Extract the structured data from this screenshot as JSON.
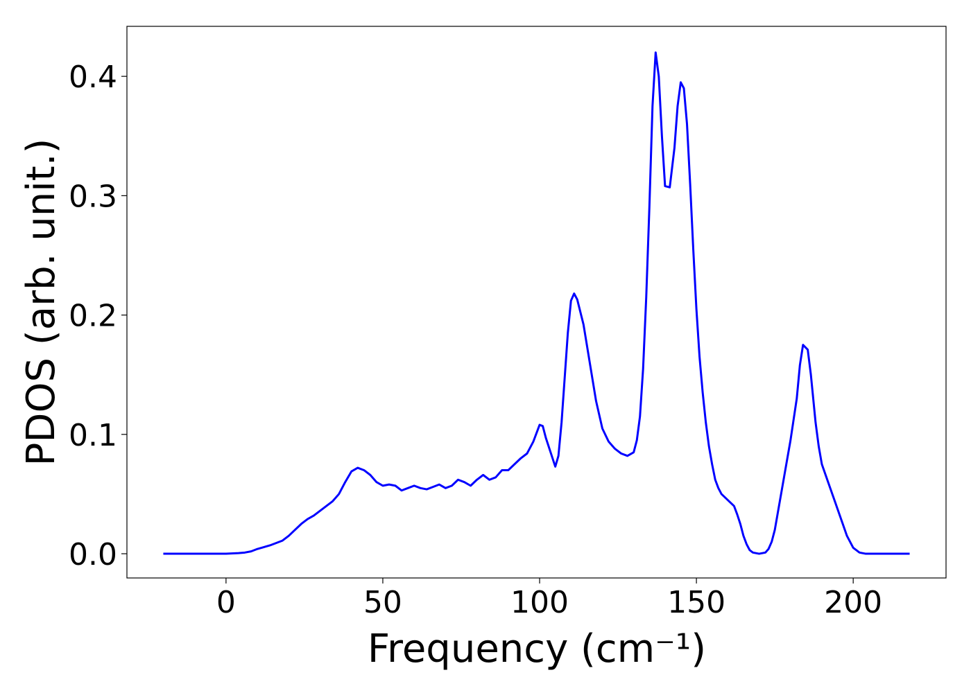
{
  "chart_data": {
    "type": "line",
    "xlabel": "Frequency (cm⁻¹)",
    "ylabel": "PDOS (arb. unit.)",
    "x": [
      -20,
      -10,
      0,
      4,
      6,
      8,
      10,
      14,
      18,
      20,
      22,
      24,
      26,
      28,
      30,
      32,
      34,
      36,
      38,
      40,
      42,
      44,
      46,
      48,
      50,
      52,
      54,
      56,
      58,
      60,
      62,
      64,
      66,
      68,
      70,
      72,
      74,
      76,
      78,
      80,
      82,
      84,
      86,
      88,
      90,
      92,
      94,
      96,
      98,
      100,
      101,
      102,
      104,
      105,
      106,
      107,
      109,
      110,
      111,
      112,
      114,
      116,
      118,
      120,
      122,
      124,
      126,
      128,
      130,
      131,
      132,
      133,
      134,
      135,
      136,
      137,
      138,
      139,
      140,
      141.5,
      143,
      144,
      145,
      146,
      147,
      148,
      149,
      150,
      151,
      152,
      153,
      154,
      155,
      156,
      157,
      158,
      160,
      162,
      163,
      164,
      165,
      166,
      167,
      168,
      170,
      172,
      173,
      174,
      175,
      176,
      178,
      180,
      182,
      183,
      184,
      185.5,
      186.5,
      188,
      189,
      190,
      192,
      194,
      196,
      198,
      200,
      202,
      204,
      210,
      218
    ],
    "series": [
      {
        "color": "#0000ff",
        "values": [
          0,
          0,
          0,
          0.0005,
          0.001,
          0.002,
          0.004,
          0.007,
          0.011,
          0.015,
          0.02,
          0.025,
          0.029,
          0.032,
          0.036,
          0.04,
          0.044,
          0.05,
          0.06,
          0.069,
          0.072,
          0.07,
          0.066,
          0.06,
          0.057,
          0.058,
          0.057,
          0.053,
          0.055,
          0.057,
          0.055,
          0.054,
          0.056,
          0.058,
          0.055,
          0.057,
          0.062,
          0.06,
          0.057,
          0.062,
          0.066,
          0.062,
          0.064,
          0.07,
          0.07,
          0.075,
          0.08,
          0.084,
          0.094,
          0.108,
          0.107,
          0.097,
          0.081,
          0.073,
          0.082,
          0.11,
          0.185,
          0.212,
          0.218,
          0.213,
          0.192,
          0.16,
          0.128,
          0.105,
          0.094,
          0.088,
          0.084,
          0.082,
          0.085,
          0.095,
          0.115,
          0.155,
          0.215,
          0.29,
          0.375,
          0.42,
          0.4,
          0.35,
          0.308,
          0.307,
          0.34,
          0.375,
          0.395,
          0.39,
          0.36,
          0.31,
          0.255,
          0.205,
          0.165,
          0.135,
          0.11,
          0.09,
          0.075,
          0.062,
          0.055,
          0.05,
          0.045,
          0.04,
          0.033,
          0.025,
          0.015,
          0.008,
          0.003,
          0.001,
          0,
          0.001,
          0.004,
          0.01,
          0.02,
          0.035,
          0.065,
          0.095,
          0.13,
          0.158,
          0.175,
          0.171,
          0.15,
          0.11,
          0.09,
          0.075,
          0.06,
          0.045,
          0.03,
          0.015,
          0.005,
          0.001,
          0,
          0,
          0
        ]
      }
    ],
    "xlim": [
      -31.6,
      229.6
    ],
    "xticks": [
      0,
      50,
      100,
      150,
      200
    ],
    "ylim": [
      -0.0203,
      0.4419
    ],
    "yticks": [
      {
        "value": 0,
        "label": "0.0"
      },
      0.1,
      0.2,
      0.3,
      0.4
    ],
    "grid": false
  }
}
